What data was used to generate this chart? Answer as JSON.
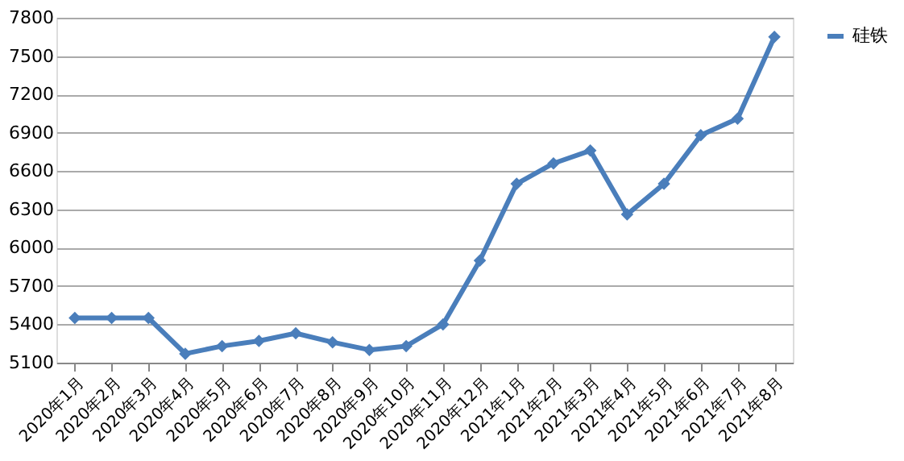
{
  "chart_data": {
    "type": "line",
    "categories": [
      "2020年1月",
      "2020年2月",
      "2020年3月",
      "2020年4月",
      "2020年5月",
      "2020年6月",
      "2020年7月",
      "2020年8月",
      "2020年9月",
      "2020年10月",
      "2020年11月",
      "2020年12月",
      "2021年1月",
      "2021年2月",
      "2021年3月",
      "2021年4月",
      "2021年5月",
      "2021年6月",
      "2021年7月",
      "2021年8月"
    ],
    "series": [
      {
        "name": "硅铁",
        "color": "#4a7ebb",
        "values": [
          5450,
          5450,
          5450,
          5170,
          5230,
          5270,
          5330,
          5260,
          5200,
          5230,
          5400,
          5900,
          6500,
          6660,
          6760,
          6260,
          6500,
          6880,
          7010,
          7650
        ]
      }
    ],
    "ylim": [
      5100,
      7800
    ],
    "yticks": [
      5100,
      5400,
      5700,
      6000,
      6300,
      6600,
      6900,
      7200,
      7500,
      7800
    ],
    "grid": "y",
    "legend": "right",
    "marker": "diamond",
    "line_style": "solid"
  }
}
